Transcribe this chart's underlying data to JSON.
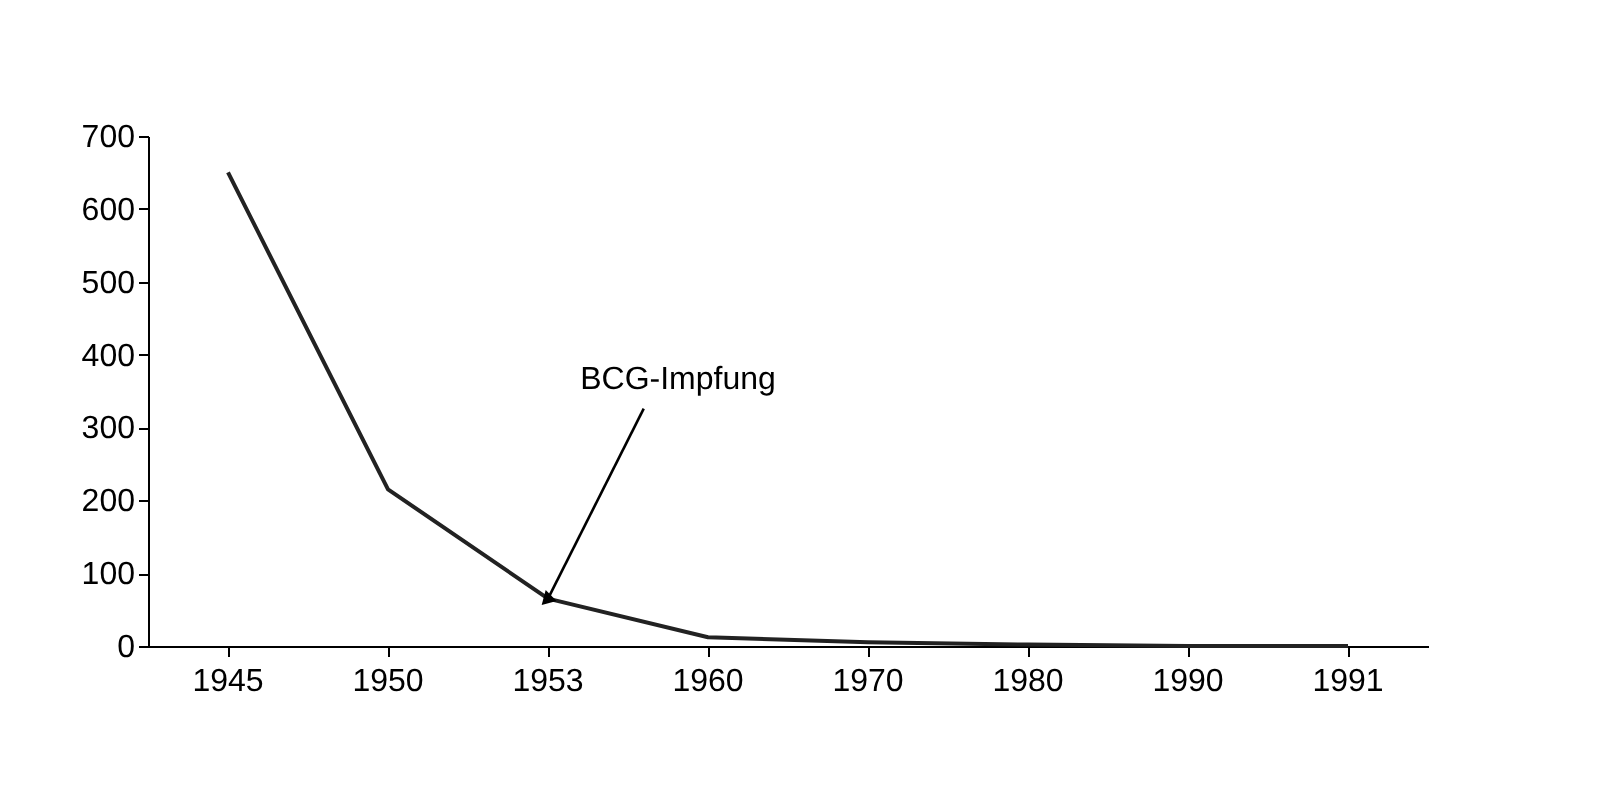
{
  "chart_data": {
    "type": "line",
    "categories": [
      "1945",
      "1950",
      "1953",
      "1960",
      "1970",
      "1980",
      "1990",
      "1991"
    ],
    "values": [
      650,
      215,
      65,
      12,
      5,
      2,
      0,
      0
    ],
    "color": "#222222",
    "ylim": [
      0,
      700
    ],
    "yticks": [
      0,
      100,
      200,
      300,
      400,
      500,
      600,
      700
    ],
    "grid": false,
    "marker": "none",
    "line_style": "solid",
    "annotations": [
      {
        "text": "BCG-Impfung",
        "x": "1953",
        "y": 65
      }
    ]
  }
}
